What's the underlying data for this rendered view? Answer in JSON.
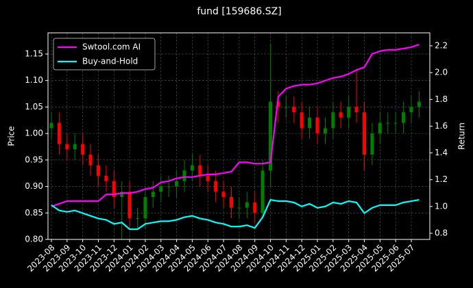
{
  "chart_data": {
    "type": "candlestick",
    "title": "fund [159686.SZ]",
    "ylabel": "Price",
    "y2label": "Return",
    "categories": [
      "2023-08",
      null,
      "2023-09",
      null,
      "2023-10",
      null,
      "2023-11",
      null,
      "2023-12",
      null,
      "2024-01",
      null,
      "2024-02",
      null,
      "2024-03",
      null,
      "2024-04",
      null,
      "2024-05",
      null,
      "2024-06",
      null,
      "2024-07",
      null,
      "2024-08",
      null,
      "2024-09",
      null,
      "2024-10",
      null,
      "2024-11",
      null,
      "2024-12",
      null,
      "2025-01",
      null,
      "2025-02",
      null,
      "2025-03",
      null,
      "2025-04",
      null,
      "2025-05",
      null,
      "2025-06",
      null,
      "2025-07",
      null
    ],
    "open": [
      1.01,
      1.02,
      0.98,
      0.97,
      0.98,
      0.96,
      0.94,
      0.92,
      0.91,
      0.88,
      0.89,
      0.84,
      0.84,
      0.88,
      0.89,
      0.9,
      0.9,
      0.91,
      0.93,
      0.94,
      0.92,
      0.91,
      0.89,
      0.88,
      0.86,
      0.86,
      0.87,
      0.85,
      0.93,
      1.06,
      1.05,
      1.05,
      1.04,
      1.01,
      1.03,
      1.0,
      1.01,
      1.04,
      1.03,
      1.05,
      1.04,
      0.96,
      1.0,
      1.02,
      1.02,
      1.02,
      1.04,
      1.05
    ],
    "high": [
      1.04,
      1.04,
      1.0,
      1.0,
      1.0,
      0.98,
      0.96,
      0.94,
      0.93,
      0.91,
      0.91,
      0.86,
      0.9,
      0.91,
      0.92,
      0.92,
      0.93,
      0.95,
      0.96,
      0.96,
      0.94,
      0.93,
      0.91,
      0.9,
      0.88,
      0.89,
      0.89,
      0.95,
      1.17,
      1.08,
      1.07,
      1.07,
      1.06,
      1.05,
      1.05,
      1.03,
      1.06,
      1.06,
      1.07,
      1.12,
      1.06,
      1.02,
      1.04,
      1.04,
      1.04,
      1.06,
      1.07,
      1.08
    ],
    "low": [
      0.99,
      0.96,
      0.95,
      0.95,
      0.94,
      0.92,
      0.9,
      0.89,
      0.86,
      0.8,
      0.82,
      0.82,
      0.82,
      0.86,
      0.87,
      0.88,
      0.88,
      0.89,
      0.91,
      0.9,
      0.89,
      0.87,
      0.86,
      0.84,
      0.84,
      0.84,
      0.83,
      0.84,
      0.9,
      1.02,
      1.03,
      1.02,
      0.99,
      0.99,
      0.98,
      0.98,
      0.99,
      1.01,
      1.01,
      1.02,
      0.93,
      0.94,
      0.98,
      1.0,
      1.0,
      1.0,
      1.02,
      1.03
    ],
    "close": [
      1.02,
      0.98,
      0.97,
      0.98,
      0.96,
      0.94,
      0.92,
      0.91,
      0.88,
      0.89,
      0.84,
      0.84,
      0.88,
      0.89,
      0.9,
      0.9,
      0.91,
      0.93,
      0.94,
      0.92,
      0.91,
      0.89,
      0.88,
      0.86,
      0.86,
      0.87,
      0.85,
      0.93,
      1.06,
      1.05,
      1.05,
      1.04,
      1.01,
      1.03,
      1.0,
      1.01,
      1.04,
      1.03,
      1.05,
      1.04,
      0.96,
      1.0,
      1.02,
      1.02,
      1.02,
      1.04,
      1.05,
      1.06
    ],
    "up_color": "#008000",
    "down_color": "#ff0000",
    "series": [
      {
        "name": "Swtool.com AI",
        "color": "#ff00ff",
        "axis": "y2",
        "values": [
          1.0,
          1.02,
          1.04,
          1.04,
          1.04,
          1.04,
          1.04,
          1.09,
          1.09,
          1.1,
          1.1,
          1.11,
          1.13,
          1.14,
          1.18,
          1.19,
          1.21,
          1.22,
          1.22,
          1.23,
          1.24,
          1.24,
          1.25,
          1.26,
          1.33,
          1.33,
          1.32,
          1.32,
          1.33,
          1.82,
          1.88,
          1.9,
          1.91,
          1.91,
          1.92,
          1.94,
          1.96,
          1.97,
          1.99,
          2.02,
          2.04,
          2.14,
          2.16,
          2.17,
          2.17,
          2.18,
          2.19,
          2.21
        ]
      },
      {
        "name": "Buy-and-Hold",
        "color": "#00ffff",
        "axis": "y2",
        "values": [
          1.01,
          0.97,
          0.96,
          0.97,
          0.95,
          0.93,
          0.91,
          0.9,
          0.87,
          0.88,
          0.83,
          0.83,
          0.87,
          0.88,
          0.89,
          0.89,
          0.9,
          0.92,
          0.93,
          0.91,
          0.9,
          0.88,
          0.87,
          0.85,
          0.85,
          0.86,
          0.84,
          0.92,
          1.05,
          1.04,
          1.04,
          1.03,
          1.0,
          1.02,
          0.99,
          1.0,
          1.03,
          1.02,
          1.04,
          1.03,
          0.95,
          0.99,
          1.01,
          1.01,
          1.01,
          1.03,
          1.04,
          1.05
        ]
      }
    ],
    "ylim": [
      0.8,
      1.19
    ],
    "yticks": [
      {
        "value": 0.8,
        "label": "0.80"
      },
      0.85,
      {
        "value": 0.9,
        "label": "0.90"
      },
      0.95,
      {
        "value": 1.0,
        "label": "1.00"
      },
      1.05,
      {
        "value": 1.1,
        "label": "1.10"
      },
      1.15
    ],
    "y2lim": [
      0.754,
      2.297
    ],
    "y2ticks": [
      0.8,
      {
        "value": 1.0,
        "label": "1.0"
      },
      1.2,
      1.4,
      1.6,
      1.8,
      {
        "value": 2.0,
        "label": "2.0"
      },
      2.2
    ],
    "grid": true,
    "legend": "upper left"
  }
}
